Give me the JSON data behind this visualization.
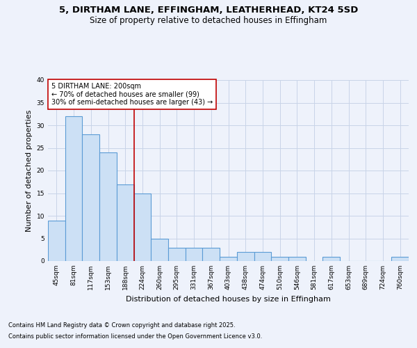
{
  "title_line1": "5, DIRTHAM LANE, EFFINGHAM, LEATHERHEAD, KT24 5SD",
  "title_line2": "Size of property relative to detached houses in Effingham",
  "xlabel": "Distribution of detached houses by size in Effingham",
  "ylabel": "Number of detached properties",
  "categories": [
    "45sqm",
    "81sqm",
    "117sqm",
    "153sqm",
    "188sqm",
    "224sqm",
    "260sqm",
    "295sqm",
    "331sqm",
    "367sqm",
    "403sqm",
    "438sqm",
    "474sqm",
    "510sqm",
    "546sqm",
    "581sqm",
    "617sqm",
    "653sqm",
    "689sqm",
    "724sqm",
    "760sqm"
  ],
  "values": [
    9,
    32,
    28,
    24,
    17,
    15,
    5,
    3,
    3,
    3,
    1,
    2,
    2,
    1,
    1,
    0,
    1,
    0,
    0,
    0,
    1
  ],
  "bar_color": "#cce0f5",
  "bar_edge_color": "#5b9bd5",
  "bar_edge_width": 0.8,
  "vline_after_index": 4,
  "vline_color": "#c00000",
  "annotation_text": "5 DIRTHAM LANE: 200sqm\n← 70% of detached houses are smaller (99)\n30% of semi-detached houses are larger (43) →",
  "annotation_box_facecolor": "#ffffff",
  "annotation_box_edgecolor": "#c00000",
  "grid_color": "#c8d4e8",
  "background_color": "#eef2fb",
  "ylim": [
    0,
    40
  ],
  "yticks": [
    0,
    5,
    10,
    15,
    20,
    25,
    30,
    35,
    40
  ],
  "footer_line1": "Contains HM Land Registry data © Crown copyright and database right 2025.",
  "footer_line2": "Contains public sector information licensed under the Open Government Licence v3.0.",
  "title1_fontsize": 9.5,
  "title2_fontsize": 8.5,
  "axis_label_fontsize": 8,
  "tick_fontsize": 6.5,
  "footer_fontsize": 6,
  "annotation_fontsize": 7
}
